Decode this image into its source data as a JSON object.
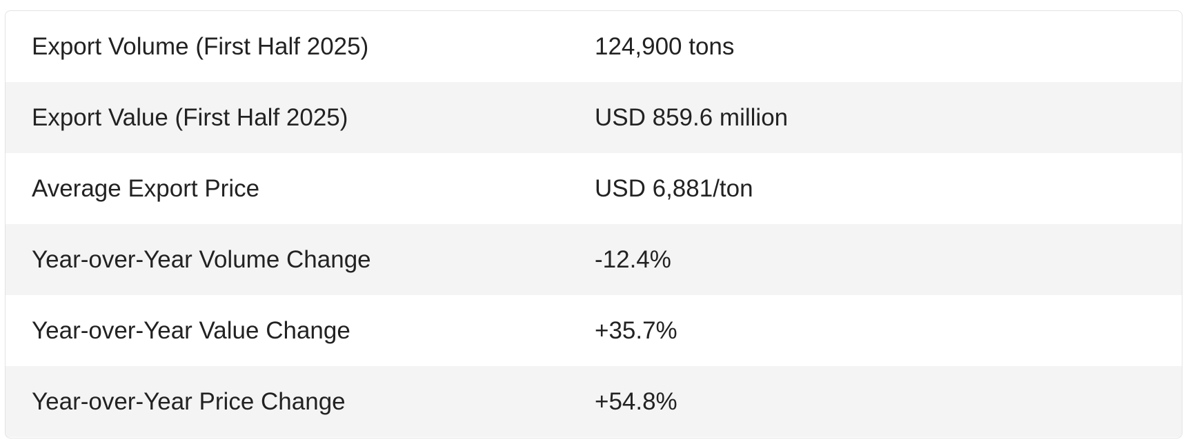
{
  "table": {
    "rows": [
      {
        "label": "Export Volume (First Half 2025)",
        "value": "124,900 tons"
      },
      {
        "label": "Export Value (First Half 2025)",
        "value": "USD 859.6 million"
      },
      {
        "label": "Average Export Price",
        "value": "USD 6,881/ton"
      },
      {
        "label": "Year-over-Year Volume Change",
        "value": "-12.4%"
      },
      {
        "label": "Year-over-Year Value Change",
        "value": "+35.7%"
      },
      {
        "label": "Year-over-Year Price Change",
        "value": "+54.8%"
      }
    ]
  },
  "colors": {
    "row_alt": "#f4f4f4",
    "row": "#ffffff",
    "text": "#222222",
    "border": "#e3e3e3"
  }
}
